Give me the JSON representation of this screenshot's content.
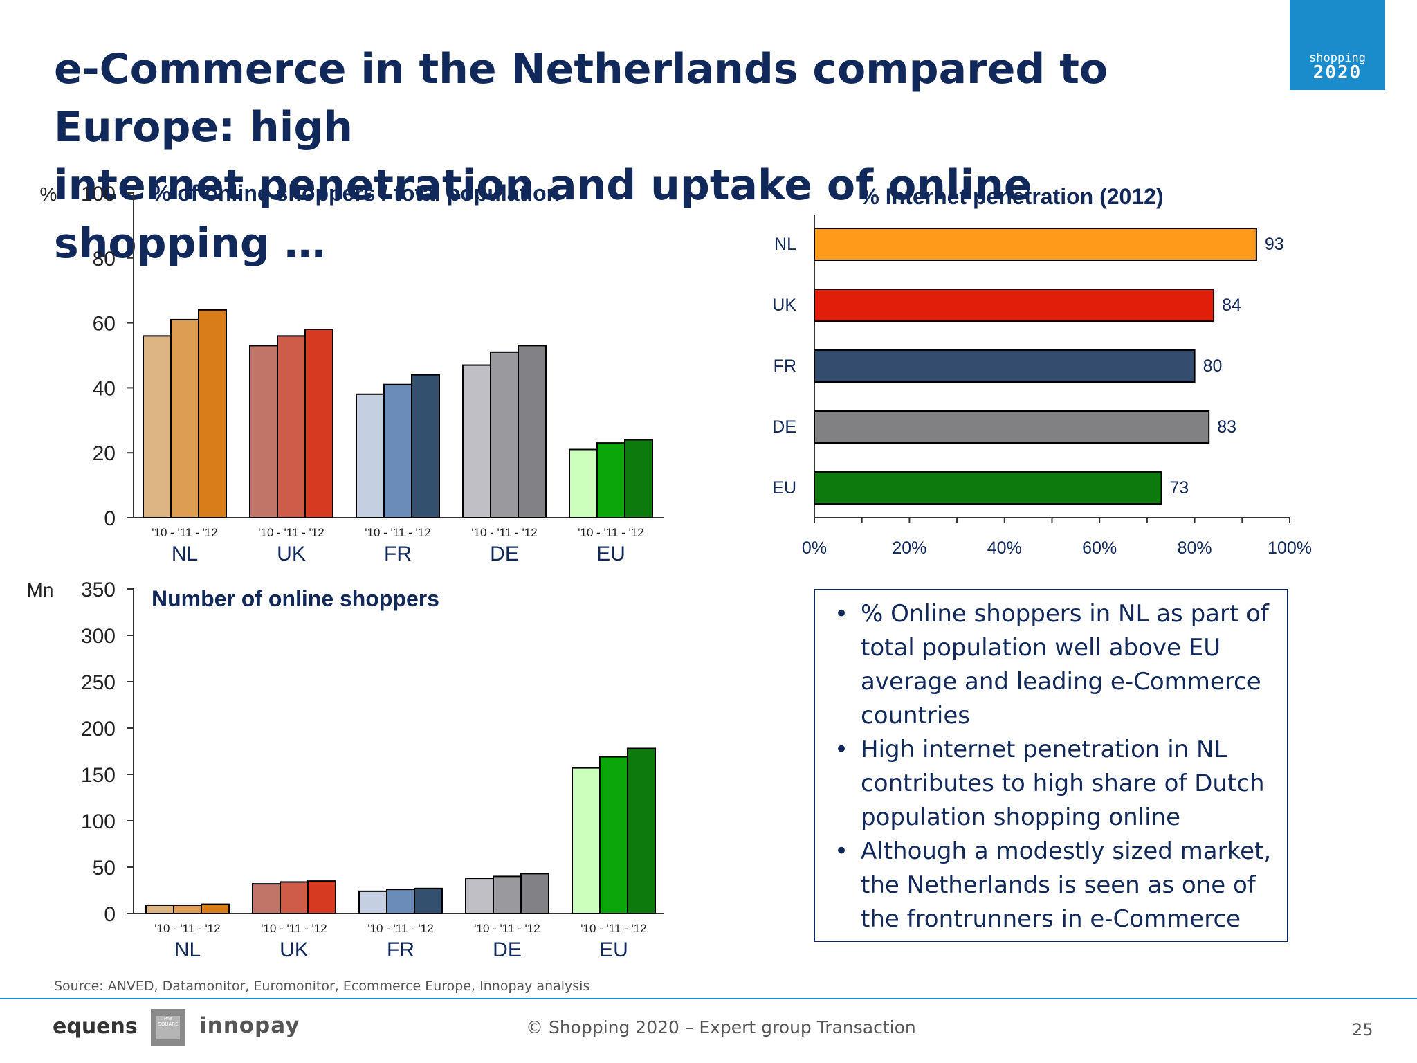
{
  "page": {
    "title_line1": "e-Commerce in the Netherlands compared to Europe: high",
    "title_line2": "internet penetration and uptake of online shopping …",
    "logo_top": "shopping",
    "logo_bottom": "2020",
    "source": "Source: ANVED, Datamonitor, Euromonitor, Ecommerce Europe, Innopay analysis",
    "footer_center": "© Shopping 2020 – Expert group Transaction",
    "page_number": "25",
    "logo_left": "equens",
    "logo_square": "PAY SQUARE",
    "logo_right": "innopay"
  },
  "bullets": [
    "% Online shoppers in NL as part of total population well above EU average and leading e-Commerce countries",
    "High internet penetration in NL contributes to high share of Dutch population shopping online",
    "Although a modestly sized market, the Netherlands is seen as one of the frontrunners in e-Commerce"
  ],
  "chart_data": [
    {
      "type": "bar",
      "title": "% of online shoppers / total population",
      "ylabel": "%",
      "ylim": [
        0,
        100
      ],
      "yticks": [
        0,
        20,
        40,
        60,
        80,
        100
      ],
      "categories": [
        "NL",
        "UK",
        "FR",
        "DE",
        "EU"
      ],
      "sub_label": "'10 - '11 - '12",
      "series": [
        {
          "name": "'10",
          "values": [
            56,
            53,
            38,
            47,
            21
          ]
        },
        {
          "name": "'11",
          "values": [
            61,
            56,
            41,
            51,
            23
          ]
        },
        {
          "name": "'12",
          "values": [
            64,
            58,
            44,
            53,
            24
          ]
        }
      ],
      "colors": [
        [
          "#ddb583",
          "#dd9d52",
          "#d97d1b"
        ],
        [
          "#c07568",
          "#cd5d48",
          "#d63a20"
        ],
        [
          "#c4d0e2",
          "#6b8cb8",
          "#34506f"
        ],
        [
          "#c0bfc5",
          "#99999e",
          "#828286"
        ],
        [
          "#ccffbb",
          "#0aa60a",
          "#0c7a0c"
        ]
      ]
    },
    {
      "type": "bar",
      "title": "Number of online shoppers",
      "ylabel": "Mn",
      "ylim": [
        0,
        350
      ],
      "yticks": [
        0,
        50,
        100,
        150,
        200,
        250,
        300,
        350
      ],
      "categories": [
        "NL",
        "UK",
        "FR",
        "DE",
        "EU"
      ],
      "sub_label": "'10 - '11 - '12",
      "series": [
        {
          "name": "'10",
          "values": [
            9,
            32,
            24,
            38,
            157
          ]
        },
        {
          "name": "'11",
          "values": [
            9,
            34,
            26,
            40,
            169
          ]
        },
        {
          "name": "'12",
          "values": [
            10,
            35,
            27,
            43,
            178
          ]
        }
      ],
      "colors": [
        [
          "#ddb583",
          "#dd9d52",
          "#d97d1b"
        ],
        [
          "#c07568",
          "#cd5d48",
          "#d63a20"
        ],
        [
          "#c4d0e2",
          "#6b8cb8",
          "#34506f"
        ],
        [
          "#c0bfc5",
          "#99999e",
          "#828286"
        ],
        [
          "#ccffbb",
          "#0aa60a",
          "#0c7a0c"
        ]
      ]
    },
    {
      "type": "bar",
      "orientation": "horizontal",
      "title": "% Internet penetration (2012)",
      "categories": [
        "NL",
        "UK",
        "FR",
        "DE",
        "EU"
      ],
      "values": [
        93,
        84,
        80,
        83,
        73
      ],
      "xlim": [
        0,
        100
      ],
      "xticks": [
        "0%",
        "20%",
        "40%",
        "60%",
        "80%",
        "100%"
      ],
      "colors": [
        "#ff9a1a",
        "#e01e0a",
        "#344c6e",
        "#818082",
        "#0c7a0c"
      ]
    }
  ]
}
